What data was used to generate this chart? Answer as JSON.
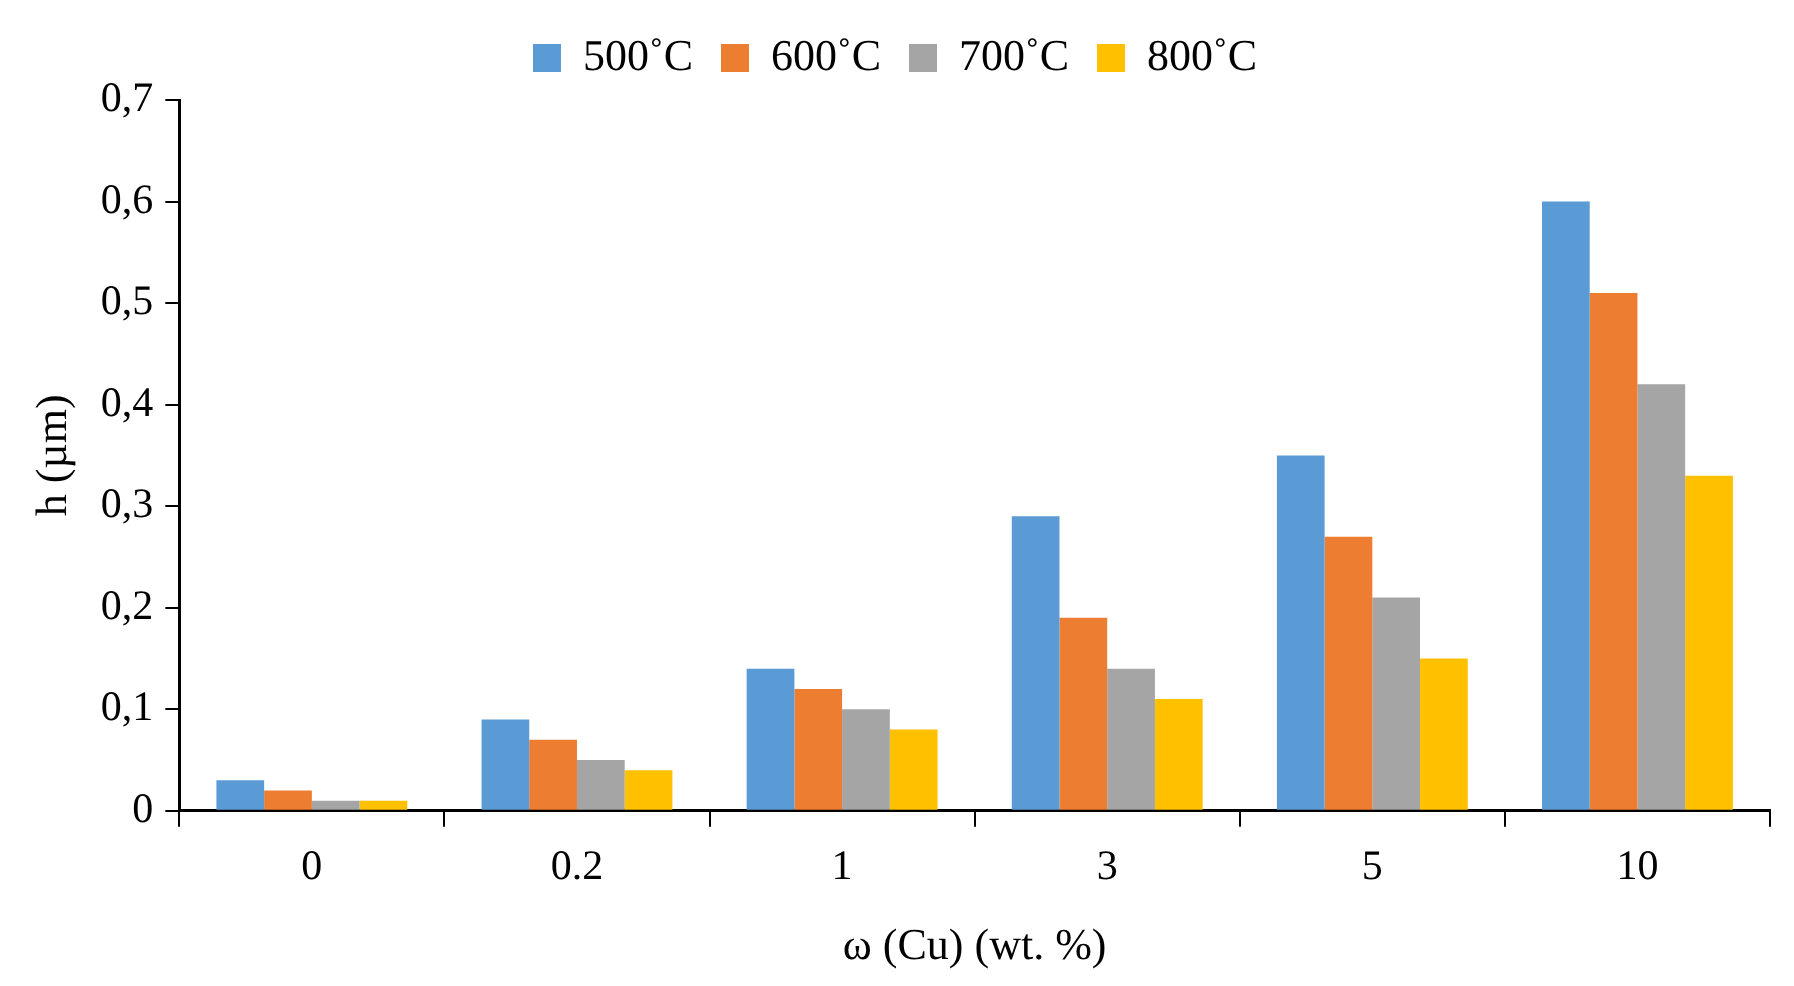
{
  "chart_data": {
    "type": "bar",
    "xlabel": "ω (Cu) (wt. %)",
    "ylabel": "h (µm)",
    "categories": [
      "0",
      "0.2",
      "1",
      "3",
      "5",
      "10"
    ],
    "series": [
      {
        "name": "500˚C",
        "color": "#5b9bd5",
        "values": [
          0.03,
          0.09,
          0.14,
          0.29,
          0.35,
          0.6
        ]
      },
      {
        "name": "600˚C",
        "color": "#ed7d31",
        "values": [
          0.02,
          0.07,
          0.12,
          0.19,
          0.27,
          0.51
        ]
      },
      {
        "name": "700˚C",
        "color": "#a5a5a5",
        "values": [
          0.01,
          0.05,
          0.1,
          0.14,
          0.21,
          0.42
        ]
      },
      {
        "name": "800˚C",
        "color": "#ffc000",
        "values": [
          0.01,
          0.04,
          0.08,
          0.11,
          0.15,
          0.33
        ]
      }
    ],
    "ylim": [
      0,
      0.7
    ],
    "yticks": [
      {
        "value": 0,
        "label": "0"
      },
      {
        "value": 0.1,
        "label": "0,1"
      },
      {
        "value": 0.2,
        "label": "0,2"
      },
      {
        "value": 0.3,
        "label": "0,3"
      },
      {
        "value": 0.4,
        "label": "0,4"
      },
      {
        "value": 0.5,
        "label": "0,5"
      },
      {
        "value": 0.6,
        "label": "0,6"
      },
      {
        "value": 0.7,
        "label": "0,7"
      }
    ],
    "legend": "top"
  }
}
